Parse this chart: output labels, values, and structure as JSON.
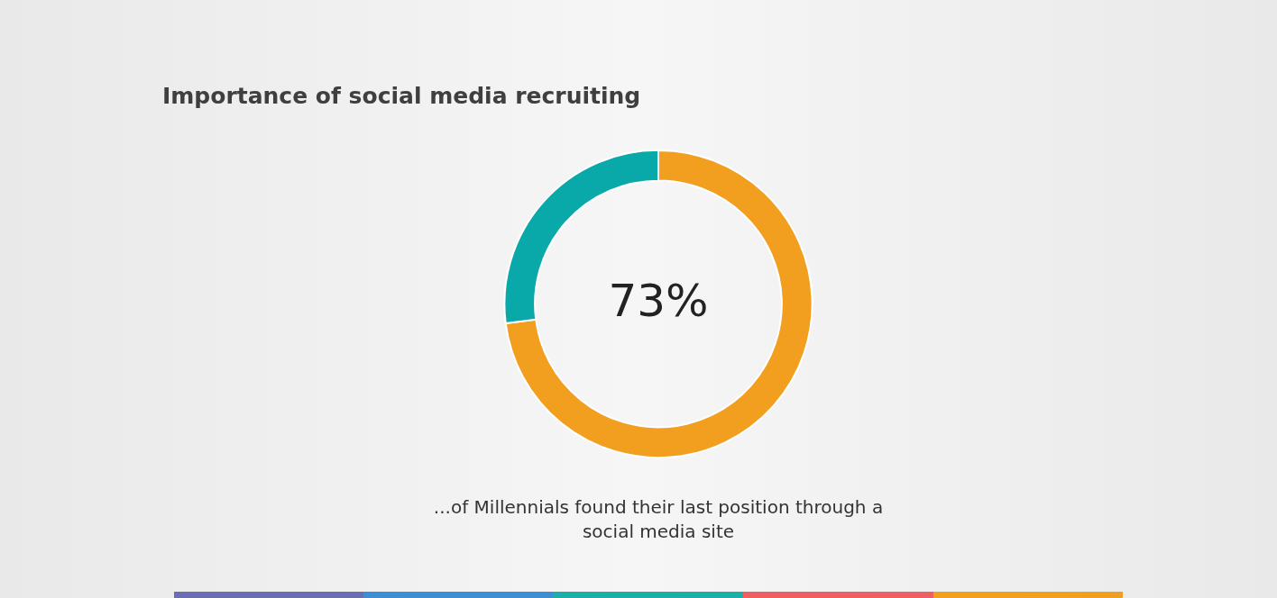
{
  "chart_data": {
    "type": "donut",
    "title": "Importance of social media recruiting",
    "categories": [
      null,
      null
    ],
    "values": [
      73,
      27
    ],
    "colors": [
      "#f29f1f",
      "#0aa9a9"
    ],
    "annotations": [
      "73%",
      "...of Millennials found their last position through a social media site"
    ]
  }
}
